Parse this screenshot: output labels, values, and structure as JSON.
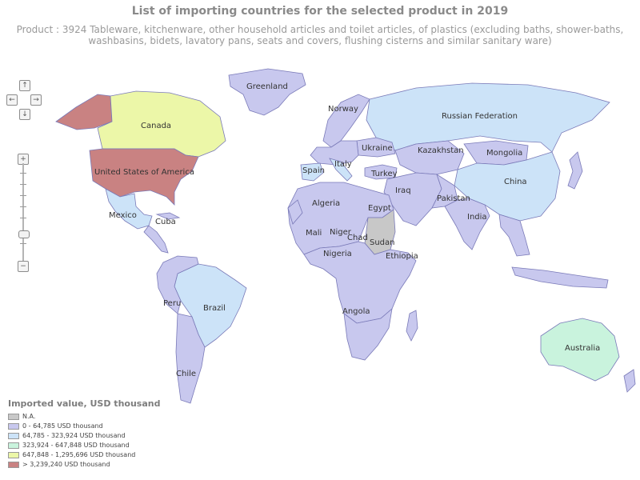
{
  "title": "List of importing countries for the selected product in 2019",
  "subtitle": "Product : 3924 Tableware, kitchenware, other household articles and toilet articles, of plastics (excluding baths, shower-baths, washbasins, bidets, lavatory pans, seats and covers, flushing cisterns and similar sanitary ware)",
  "legend": {
    "title": "Imported value, USD thousand",
    "items": [
      {
        "label": "N.A.",
        "color": "#c8c8c8"
      },
      {
        "label": "0 - 64,785 USD thousand",
        "color": "#c8c8ee"
      },
      {
        "label": "64,785 - 323,924 USD thousand",
        "color": "#cce3f8"
      },
      {
        "label": "323,924 - 647,848 USD thousand",
        "color": "#c9f3dd"
      },
      {
        "label": "647,848 - 1,295,696 USD thousand",
        "color": "#ecf7a8"
      },
      {
        "label": "> 3,239,240 USD thousand",
        "color": "#c98282"
      }
    ]
  },
  "countries": [
    {
      "name": "Greenland",
      "class": 1
    },
    {
      "name": "Canada",
      "class": 4
    },
    {
      "name": "United States of America",
      "class": 5
    },
    {
      "name": "Mexico",
      "class": 2
    },
    {
      "name": "Cuba",
      "class": 1
    },
    {
      "name": "Brazil",
      "class": 2
    },
    {
      "name": "Peru",
      "class": 1
    },
    {
      "name": "Chile",
      "class": 1
    },
    {
      "name": "Norway",
      "class": 1
    },
    {
      "name": "Russian Federation",
      "class": 2
    },
    {
      "name": "Ukraine",
      "class": 1
    },
    {
      "name": "Kazakhstan",
      "class": 1
    },
    {
      "name": "Mongolia",
      "class": 1
    },
    {
      "name": "China",
      "class": 2
    },
    {
      "name": "Spain",
      "class": 2
    },
    {
      "name": "Italy",
      "class": 2
    },
    {
      "name": "Turkey",
      "class": 1
    },
    {
      "name": "Iraq",
      "class": 1
    },
    {
      "name": "Pakistan",
      "class": 1
    },
    {
      "name": "India",
      "class": 1
    },
    {
      "name": "Algeria",
      "class": 1
    },
    {
      "name": "Egypt",
      "class": 1
    },
    {
      "name": "Mali",
      "class": 1
    },
    {
      "name": "Niger",
      "class": 1
    },
    {
      "name": "Chad",
      "class": 1
    },
    {
      "name": "Sudan",
      "class": 0
    },
    {
      "name": "Nigeria",
      "class": 1
    },
    {
      "name": "Ethiopia",
      "class": 1
    },
    {
      "name": "Angola",
      "class": 1
    },
    {
      "name": "Australia",
      "class": 3
    }
  ],
  "controls": {
    "pan_up": "↑",
    "pan_left": "←",
    "pan_right": "→",
    "pan_down": "↓",
    "zoom_in": "+",
    "zoom_out": "−"
  }
}
